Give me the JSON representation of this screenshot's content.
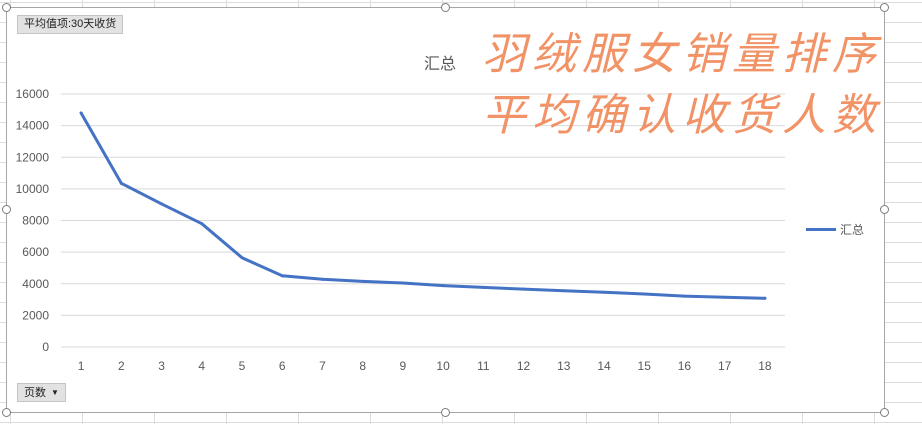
{
  "filter_button": {
    "label": "平均值项:30天收货"
  },
  "axis_field_button": {
    "label": "页数",
    "arrow_icon": "dropdown-arrow-icon"
  },
  "annotation": {
    "line1": "羽绒服女销量排序",
    "line2": "平均确认收货人数",
    "color": "#f08a5b"
  },
  "chart_data": {
    "type": "line",
    "title": "汇总",
    "x": [
      1,
      2,
      3,
      4,
      5,
      6,
      7,
      8,
      9,
      10,
      11,
      12,
      13,
      14,
      15,
      16,
      17,
      18
    ],
    "series": [
      {
        "name": "汇总",
        "color": "#4472c4",
        "values": [
          14800,
          10350,
          9050,
          7800,
          5650,
          4500,
          4280,
          4150,
          4050,
          3880,
          3770,
          3660,
          3560,
          3460,
          3350,
          3220,
          3150,
          3080
        ]
      }
    ],
    "ylim": [
      0,
      16000
    ],
    "yticks": [
      0,
      2000,
      4000,
      6000,
      8000,
      10000,
      12000,
      14000,
      16000
    ],
    "grid": true,
    "legend": "right"
  }
}
